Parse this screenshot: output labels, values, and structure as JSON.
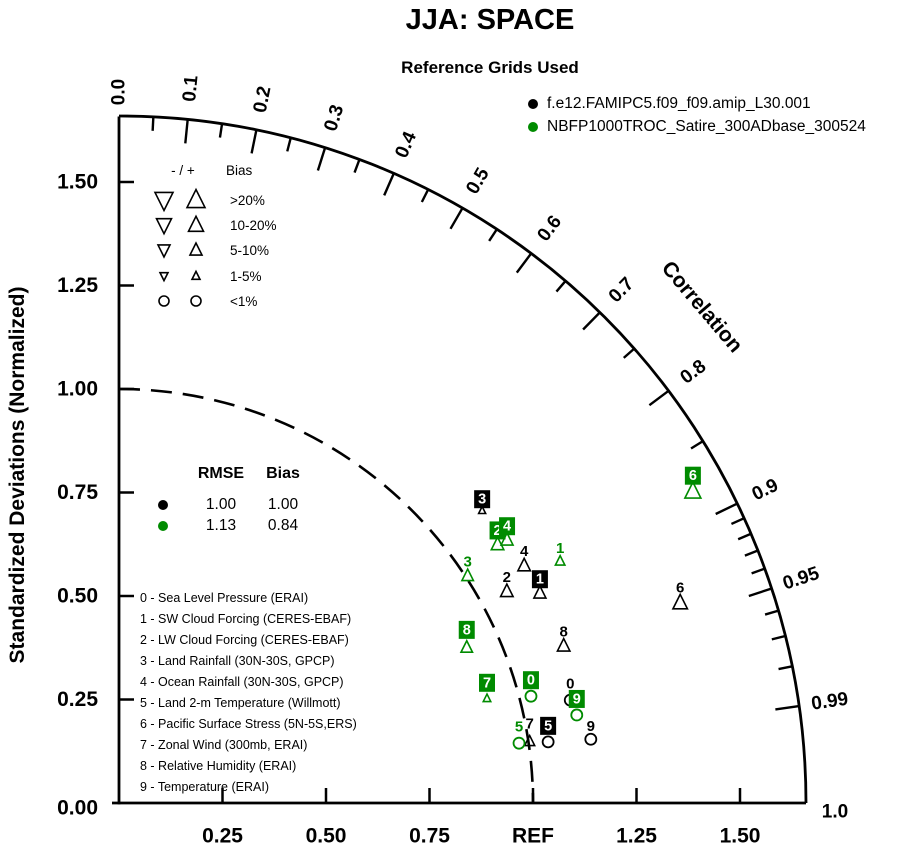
{
  "title": "JJA: SPACE",
  "subtitle": "Reference Grids Used",
  "colors": {
    "model1": "#000000",
    "model2": "#008B00",
    "background": "#FFFFFF"
  },
  "bias_legend": {
    "header_symbols": "- / +",
    "header_label": "Bias",
    "rows": [
      {
        "minus": "down-triangle",
        "plus": "up-triangle",
        "label": ">20%",
        "size": 18
      },
      {
        "minus": "down-triangle",
        "plus": "up-triangle",
        "label": "10-20%",
        "size": 15
      },
      {
        "minus": "down-triangle",
        "plus": "up-triangle",
        "label": "5-10%",
        "size": 12
      },
      {
        "minus": "down-triangle",
        "plus": "up-triangle",
        "label": "1-5%",
        "size": 8
      },
      {
        "minus": "circle",
        "plus": "circle",
        "label": "<1%",
        "size": 10
      }
    ]
  },
  "stats": {
    "header_rmse": "RMSE",
    "header_bias": "Bias"
  },
  "variables": [
    "0 - Sea Level Pressure (ERAI)",
    "1 - SW Cloud Forcing (CERES-EBAF)",
    "2 - LW Cloud Forcing (CERES-EBAF)",
    "3 - Land Rainfall (30N-30S, GPCP)",
    "4 - Ocean Rainfall (30N-30S, GPCP)",
    "5 - Land 2-m Temperature (Willmott)",
    "6 - Pacific Surface Stress (5N-5S,ERS)",
    "7 - Zonal Wind (300mb, ERAI)",
    "8 - Relative Humidity (ERAI)",
    "9 - Temperature (ERAI)"
  ],
  "axes": {
    "y_title": "Standardized Deviations (Normalized)",
    "x_ref_label": "REF",
    "correlation_title": "Correlation"
  },
  "chart_data": {
    "type": "scatter",
    "subtype": "taylor_diagram",
    "title": "JJA: SPACE",
    "subtitle": "Reference Grids Used",
    "radial_axis": {
      "label": "Standardized Deviations (Normalized)",
      "range": [
        0,
        1.65
      ],
      "ticks": [
        0.25,
        0.5,
        0.75,
        1.0,
        1.25,
        1.5
      ],
      "tick_labels": [
        "0.25",
        "0.50",
        "0.75",
        "REF",
        "1.25",
        "1.50"
      ],
      "y_tick_labels": [
        "0.00",
        "0.25",
        "0.50",
        "0.75",
        "1.00",
        "1.25",
        "1.50"
      ],
      "reference_arc_std": 1.0
    },
    "correlation_axis": {
      "title": "Correlation",
      "labels": [
        {
          "v": 0.0,
          "t": "0.0",
          "dy": 7
        },
        {
          "v": 0.1,
          "t": "0.1"
        },
        {
          "v": 0.2,
          "t": "0.2"
        },
        {
          "v": 0.3,
          "t": "0.3"
        },
        {
          "v": 0.4,
          "t": "0.4"
        },
        {
          "v": 0.5,
          "t": "0.5"
        },
        {
          "v": 0.6,
          "t": "0.6"
        },
        {
          "v": 0.7,
          "t": "0.7"
        },
        {
          "v": 0.8,
          "t": "0.8"
        },
        {
          "v": 0.9,
          "t": "0.9"
        },
        {
          "v": 0.95,
          "t": "0.95"
        },
        {
          "v": 0.99,
          "t": "0.99"
        },
        {
          "v": 1.0,
          "t": "1.0",
          "dx": -2,
          "dy": 9
        }
      ],
      "major_ticks": [
        0.1,
        0.2,
        0.3,
        0.4,
        0.5,
        0.6,
        0.7,
        0.8,
        0.9,
        0.95,
        0.99
      ],
      "minor_ticks": [
        0.05,
        0.15,
        0.25,
        0.35,
        0.45,
        0.55,
        0.65,
        0.75,
        0.85,
        0.91,
        0.92,
        0.93,
        0.94,
        0.96,
        0.97,
        0.98
      ]
    },
    "series": [
      {
        "name": "f.e12.FAMIPC5.f09_f09.amip_L30.001",
        "color_key": "model1",
        "rmse": "1.00",
        "bias": "1.00",
        "points": [
          {
            "id": "0",
            "std": 1.118,
            "corr": 0.975,
            "marker": "circle",
            "size": 11,
            "boxed": false,
            "bias_class": "<1%"
          },
          {
            "id": "1",
            "std": 1.136,
            "corr": 0.895,
            "marker": "up-triangle",
            "size": 12,
            "boxed": true,
            "bias_class": "5-10%"
          },
          {
            "id": "2",
            "std": 1.067,
            "corr": 0.878,
            "marker": "up-triangle",
            "size": 12.5,
            "boxed": false,
            "bias_class": "5-10%"
          },
          {
            "id": "3",
            "std": 1.126,
            "corr": 0.779,
            "marker": "up-triangle",
            "size": 7,
            "boxed": true,
            "bias_class": "1-5%"
          },
          {
            "id": "4",
            "std": 1.134,
            "corr": 0.863,
            "marker": "up-triangle",
            "size": 12.5,
            "boxed": false,
            "bias_class": "5-10%"
          },
          {
            "id": "5",
            "std": 1.047,
            "corr": 0.99,
            "marker": "circle",
            "size": 11,
            "boxed": true,
            "bias_class": "<1%"
          },
          {
            "id": "6",
            "std": 1.439,
            "corr": 0.942,
            "marker": "up-triangle",
            "size": 14.5,
            "boxed": false,
            "bias_class": "10-20%"
          },
          {
            "id": "7",
            "std": 1.003,
            "corr": 0.989,
            "marker": "up-triangle",
            "size": 10,
            "boxed": false,
            "bias_class": "1-5%",
            "label_dy": -4.5
          },
          {
            "id": "8",
            "std": 1.139,
            "corr": 0.943,
            "marker": "up-triangle",
            "size": 12.5,
            "boxed": false,
            "bias_class": "5-10%"
          },
          {
            "id": "9",
            "std": 1.15,
            "corr": 0.991,
            "marker": "circle",
            "size": 11,
            "boxed": false,
            "bias_class": "<1%",
            "label_dy": 3
          }
        ]
      },
      {
        "name": "NBFP1000TROC_Satire_300ADbase_300524",
        "color_key": "model2",
        "rmse": "1.13",
        "bias": "0.84",
        "points": [
          {
            "id": "0",
            "std": 1.028,
            "corr": 0.968,
            "marker": "circle",
            "size": 11,
            "boxed": true,
            "bias_class": "<1%"
          },
          {
            "id": "1",
            "std": 1.215,
            "corr": 0.877,
            "marker": "up-triangle",
            "size": 9.5,
            "boxed": false,
            "bias_class": "1-5%"
          },
          {
            "id": "2",
            "std": 1.107,
            "corr": 0.826,
            "marker": "up-triangle",
            "size": 12.5,
            "boxed": true,
            "bias_class": "5-10%"
          },
          {
            "id": "3",
            "std": 1.005,
            "corr": 0.838,
            "marker": "up-triangle",
            "size": 11.5,
            "boxed": false,
            "bias_class": "5-10%"
          },
          {
            "id": "4",
            "std": 1.132,
            "corr": 0.828,
            "marker": "up-triangle",
            "size": 12,
            "boxed": true,
            "bias_class": "5-10%"
          },
          {
            "id": "5",
            "std": 0.977,
            "corr": 0.989,
            "marker": "circle",
            "size": 11,
            "boxed": false,
            "bias_class": "<1%"
          },
          {
            "id": "6",
            "std": 1.577,
            "corr": 0.879,
            "marker": "up-triangle",
            "size": 16,
            "boxed": true,
            "bias_class": "10-20%"
          },
          {
            "id": "7",
            "std": 0.924,
            "corr": 0.962,
            "marker": "up-triangle",
            "size": 7.5,
            "boxed": true,
            "bias_class": "1-5%",
            "label_dy": -4
          },
          {
            "id": "8",
            "std": 0.92,
            "corr": 0.913,
            "marker": "up-triangle",
            "size": 11.5,
            "boxed": true,
            "bias_class": "5-10%",
            "label_dy": -4
          },
          {
            "id": "9",
            "std": 1.126,
            "corr": 0.982,
            "marker": "circle",
            "size": 11,
            "boxed": true,
            "bias_class": "<1%"
          }
        ]
      }
    ]
  }
}
